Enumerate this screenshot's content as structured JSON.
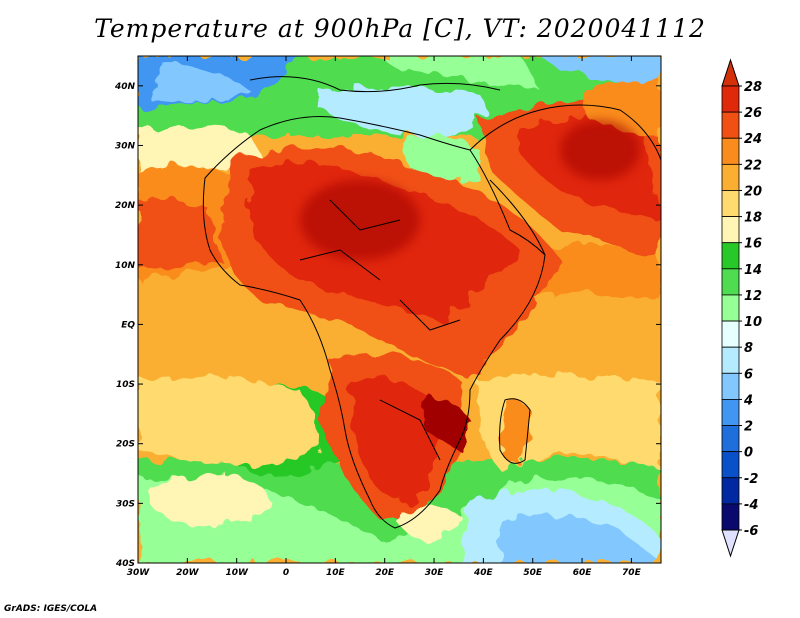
{
  "title": "Temperature at 900hPa [C], VT: 2020041112",
  "credit": "GrADS: IGES/COLA",
  "map": {
    "lon_range": [
      -30,
      76
    ],
    "lat_range": [
      -40,
      45
    ],
    "lon_ticks": [
      {
        "value": -30,
        "label": "30W"
      },
      {
        "value": -20,
        "label": "20W"
      },
      {
        "value": -10,
        "label": "10W"
      },
      {
        "value": 0,
        "label": "0"
      },
      {
        "value": 10,
        "label": "10E"
      },
      {
        "value": 20,
        "label": "20E"
      },
      {
        "value": 30,
        "label": "30E"
      },
      {
        "value": 40,
        "label": "40E"
      },
      {
        "value": 50,
        "label": "50E"
      },
      {
        "value": 60,
        "label": "60E"
      },
      {
        "value": 70,
        "label": "70E"
      }
    ],
    "lat_ticks": [
      {
        "value": 40,
        "label": "40N"
      },
      {
        "value": 30,
        "label": "30N"
      },
      {
        "value": 20,
        "label": "20N"
      },
      {
        "value": 10,
        "label": "10N"
      },
      {
        "value": 0,
        "label": "EQ"
      },
      {
        "value": -10,
        "label": "10S"
      },
      {
        "value": -20,
        "label": "20S"
      },
      {
        "value": -30,
        "label": "30S"
      },
      {
        "value": -40,
        "label": "40S"
      }
    ]
  },
  "colorbar": {
    "labels": [
      "28",
      "26",
      "24",
      "22",
      "20",
      "18",
      "16",
      "14",
      "12",
      "10",
      "8",
      "6",
      "4",
      "2",
      "0",
      "-2",
      "-4",
      "-6"
    ],
    "colors": [
      "#a00000",
      "#e0280a",
      "#f05014",
      "#fa8c1e",
      "#faaf32",
      "#ffda6e",
      "#fff5b4",
      "#28c828",
      "#50dc50",
      "#96ff96",
      "#e6ffff",
      "#b4ebff",
      "#82c8ff",
      "#4096f0",
      "#1e6edc",
      "#0a50c8",
      "#0028a0",
      "#0a0a6e",
      "#e0e0ff"
    ],
    "top_color": "#d4300a",
    "bottom_color": "#e0e0ff"
  }
}
